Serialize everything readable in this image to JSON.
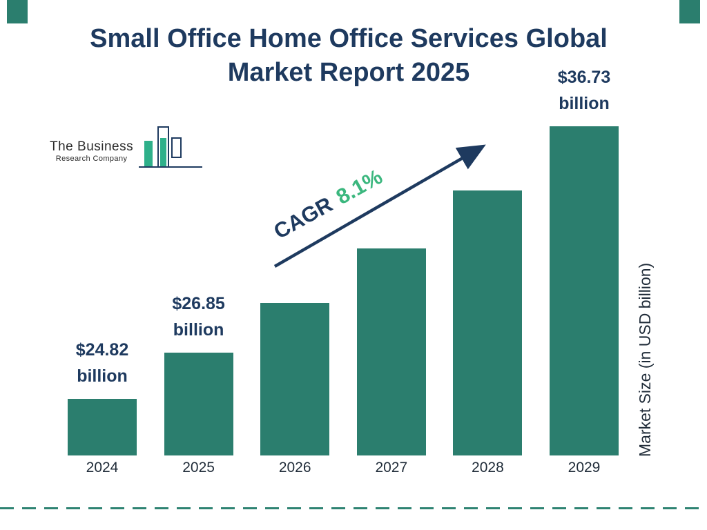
{
  "header": {
    "title_line1": "Small Office Home Office Services Global",
    "title_line2": "Market Report 2025"
  },
  "logo": {
    "name_line1": "The Business",
    "name_line2": "Research Company"
  },
  "annotation": {
    "cagr_label": "CAGR",
    "cagr_value": "8.1%"
  },
  "right_axis_label": "Market Size (in USD billion)",
  "colors": {
    "bar": "#2b7e6e",
    "navy": "#1e3a5f",
    "green": "#3bb77e",
    "dash_line": "#2e8372"
  },
  "chart_data": {
    "type": "bar",
    "title": "Small Office Home Office Services Global Market Report 2025",
    "categories": [
      "2024",
      "2025",
      "2026",
      "2027",
      "2028",
      "2029"
    ],
    "values": [
      24.82,
      26.85,
      29.02,
      31.38,
      33.92,
      36.73
    ],
    "unit": "USD billion",
    "xlabel": "",
    "ylabel": "Market Size (in USD billion)",
    "annotation": "CAGR 8.1%",
    "legend": "none",
    "grid": false,
    "axis_visible": false,
    "bar_color": "#2b7e6e",
    "value_labels": [
      {
        "index": 0,
        "amount": "$24.82",
        "unit": "billion"
      },
      {
        "index": 1,
        "amount": "$26.85",
        "unit": "billion"
      },
      {
        "index": 5,
        "amount": "$36.73",
        "unit": "billion"
      }
    ]
  }
}
